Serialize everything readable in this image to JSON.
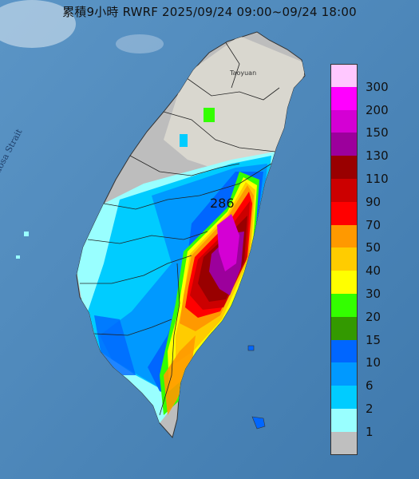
{
  "title": "累積9小時 RWRF 2025/09/24 09:00~09/24 18:00",
  "map_labels": {
    "strait": "Formosa Strait",
    "city": "Taoyuan",
    "peak_value": "286"
  },
  "legend": [
    {
      "label": "300",
      "color": "#ffc8ff"
    },
    {
      "label": "200",
      "color": "#ff00ff"
    },
    {
      "label": "150",
      "color": "#d400d4"
    },
    {
      "label": "130",
      "color": "#9c009c"
    },
    {
      "label": "110",
      "color": "#990000"
    },
    {
      "label": "90",
      "color": "#cc0000"
    },
    {
      "label": "70",
      "color": "#ff0000"
    },
    {
      "label": "50",
      "color": "#ff9900"
    },
    {
      "label": "40",
      "color": "#ffcc00"
    },
    {
      "label": "30",
      "color": "#ffff00"
    },
    {
      "label": "20",
      "color": "#33ff00"
    },
    {
      "label": "15",
      "color": "#339900"
    },
    {
      "label": "10",
      "color": "#0066ff"
    },
    {
      "label": "6",
      "color": "#0099ff"
    },
    {
      "label": "2",
      "color": "#00ccff"
    },
    {
      "label": "1",
      "color": "#99ffff"
    },
    {
      "label": "",
      "color": "#bfbfbf"
    }
  ]
}
